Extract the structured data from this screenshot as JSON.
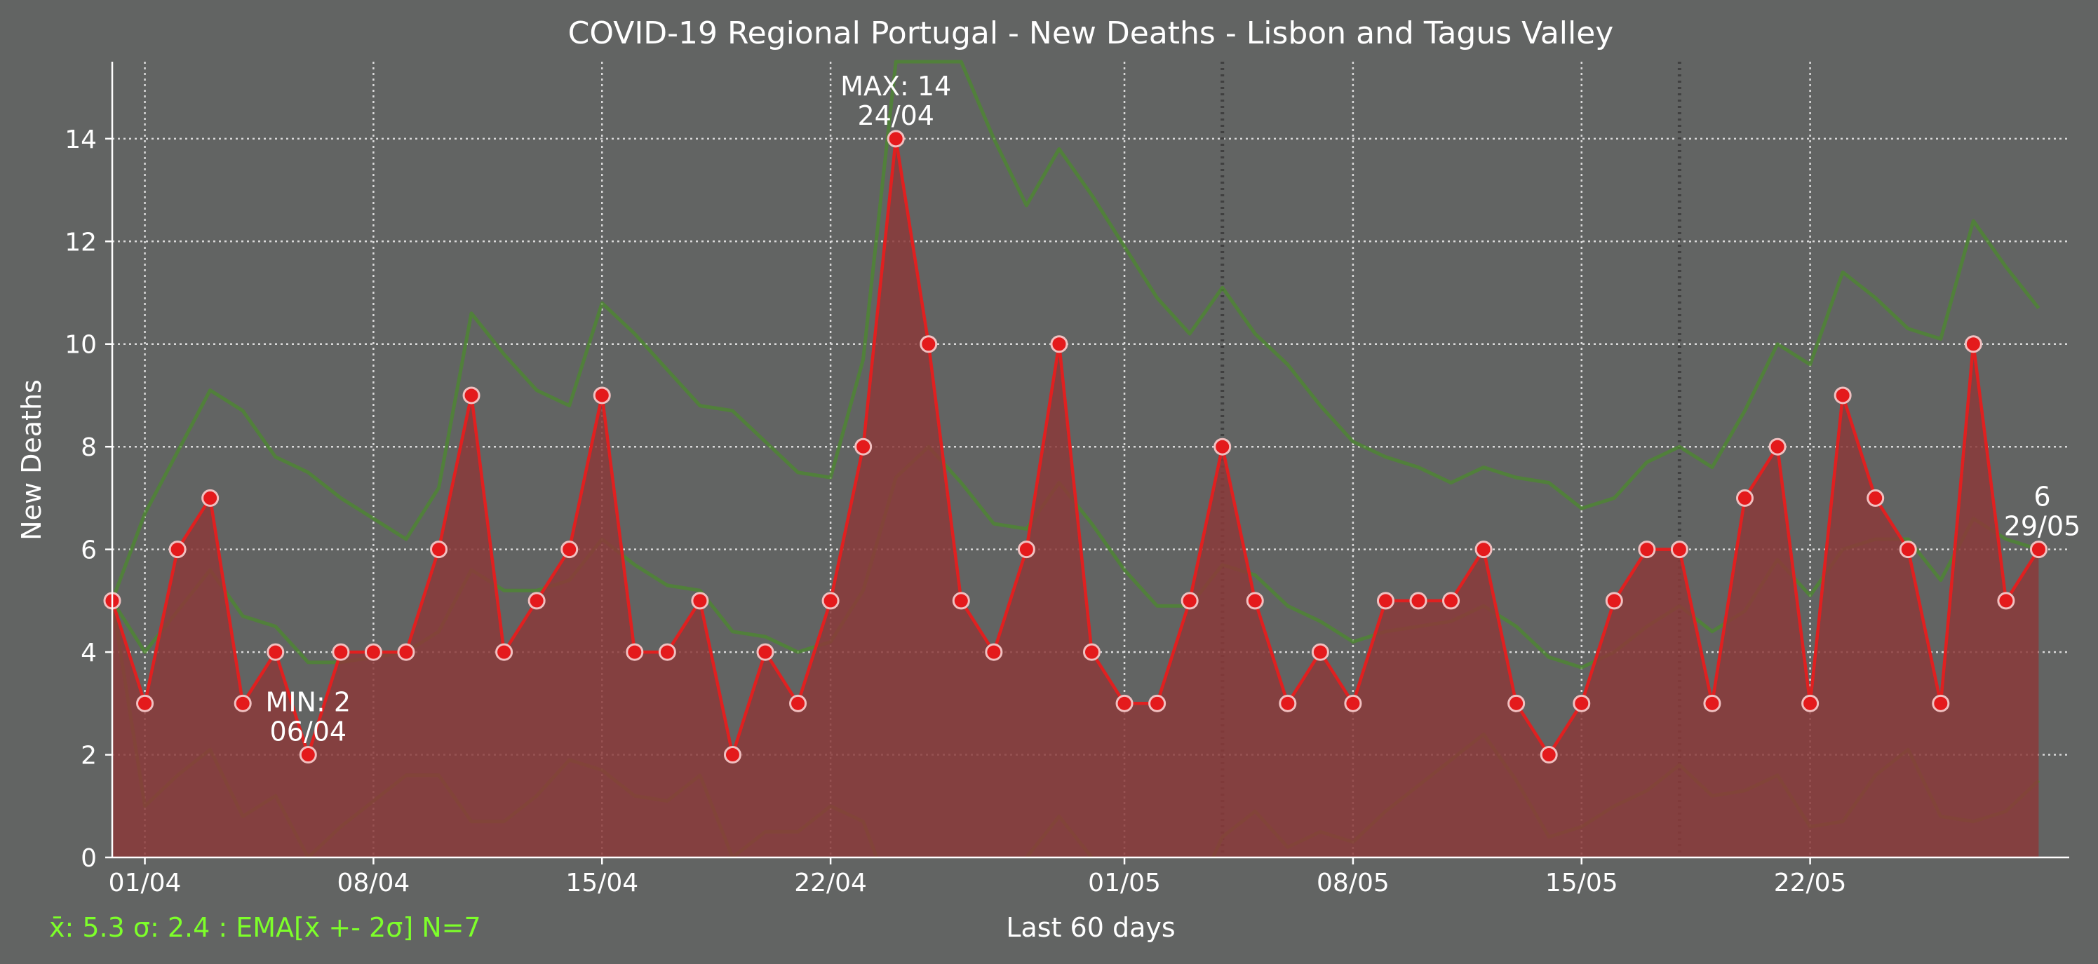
{
  "colors": {
    "background": "#626463",
    "series": "#e02020",
    "series_fill": "#8b3a3a",
    "marker": "#e41a1c",
    "marker_edge": "#f0c0c0",
    "band": "#4c8a2e",
    "footer": "#7dff2a",
    "text": "#ffffff",
    "grid": "#e6e6e6"
  },
  "footer_note": "x̄: 5.3 σ: 2.4 : EMA[x̄ +- 2σ] N=7",
  "chart_data": {
    "type": "line",
    "title": "COVID-19 Regional Portugal - New Deaths - Lisbon and Tagus Valley",
    "xlabel": "Last 60 days",
    "ylabel": "New Deaths",
    "ylim": [
      0,
      15.5
    ],
    "yticks": [
      0,
      2,
      4,
      6,
      8,
      10,
      12,
      14
    ],
    "xticks": [
      "01/04",
      "08/04",
      "15/04",
      "22/04",
      "01/05",
      "08/05",
      "15/05",
      "22/05"
    ],
    "grid": true,
    "dates": [
      "31/03",
      "01/04",
      "02/04",
      "03/04",
      "04/04",
      "05/04",
      "06/04",
      "07/04",
      "08/04",
      "09/04",
      "10/04",
      "11/04",
      "12/04",
      "13/04",
      "14/04",
      "15/04",
      "16/04",
      "17/04",
      "18/04",
      "19/04",
      "20/04",
      "21/04",
      "22/04",
      "23/04",
      "24/04",
      "25/04",
      "26/04",
      "27/04",
      "28/04",
      "29/04",
      "30/04",
      "01/05",
      "02/05",
      "03/05",
      "04/05",
      "05/05",
      "06/05",
      "07/05",
      "08/05",
      "09/05",
      "10/05",
      "11/05",
      "12/05",
      "13/05",
      "14/05",
      "15/05",
      "16/05",
      "17/05",
      "18/05",
      "19/05",
      "20/05",
      "21/05",
      "22/05",
      "23/05",
      "24/05",
      "25/05",
      "26/05",
      "27/05",
      "28/05",
      "29/05"
    ],
    "series": [
      {
        "values": [
          5,
          3,
          6,
          7,
          3,
          4,
          2,
          4,
          4,
          4,
          6,
          9,
          4,
          5,
          6,
          9,
          4,
          4,
          5,
          2,
          4,
          3,
          5,
          8,
          14,
          10,
          5,
          4,
          6,
          10,
          4,
          3,
          3,
          5,
          8,
          5,
          3,
          4,
          3,
          5,
          5,
          5,
          6,
          3,
          2,
          3,
          5,
          6,
          6,
          3,
          7,
          8,
          3,
          9,
          7,
          6,
          3,
          10,
          5,
          6
        ]
      },
      {
        "values": [
          5,
          6.7,
          7.9,
          9.1,
          8.7,
          7.8,
          7.5,
          7,
          6.6,
          6.2,
          7.2,
          10.6,
          9.8,
          9.1,
          8.8,
          10.8,
          10.2,
          9.5,
          8.8,
          8.7,
          8.1,
          7.5,
          7.4,
          9.7,
          15.5,
          15.5,
          15.5,
          14,
          12.7,
          13.8,
          12.9,
          11.9,
          10.9,
          10.2,
          11.1,
          10.2,
          9.6,
          8.8,
          8.1,
          7.8,
          7.6,
          7.3,
          7.6,
          7.4,
          7.3,
          6.8,
          7,
          7.7,
          8,
          7.6,
          8.7,
          10,
          9.6,
          11.4,
          10.9,
          10.3,
          10.1,
          12.4,
          11.5,
          10.7
        ]
      },
      {
        "values": [
          5,
          4,
          4.8,
          5.6,
          4.7,
          4.5,
          3.8,
          3.8,
          3.9,
          4,
          4.4,
          5.6,
          5.2,
          5.2,
          5.4,
          6.2,
          5.7,
          5.3,
          5.2,
          4.4,
          4.3,
          4,
          4.2,
          5.2,
          7.4,
          8,
          7.3,
          6.5,
          6.4,
          7.3,
          6.5,
          5.6,
          4.9,
          4.9,
          5.7,
          5.5,
          4.9,
          4.6,
          4.2,
          4.4,
          4.5,
          4.6,
          4.9,
          4.5,
          3.9,
          3.7,
          4,
          4.5,
          4.9,
          4.4,
          4.8,
          5.8,
          5.1,
          6,
          6.2,
          6.2,
          5.4,
          6.6,
          6.2,
          6
        ]
      },
      {
        "values": [
          5,
          1,
          1.6,
          2.1,
          0.8,
          1.2,
          0,
          0.6,
          1.1,
          1.6,
          1.6,
          0.7,
          0.7,
          1.2,
          1.9,
          1.7,
          1.2,
          1.1,
          1.6,
          0,
          0.5,
          0.5,
          1,
          0.7,
          -1,
          -1,
          -1,
          -1,
          0,
          0.8,
          0,
          -1,
          -1,
          -1,
          0.4,
          0.9,
          0.2,
          0.5,
          0.3,
          0.9,
          1.4,
          1.9,
          2.4,
          1.5,
          0.4,
          0.6,
          1,
          1.3,
          1.8,
          1.2,
          1.3,
          1.6,
          0.6,
          0.7,
          1.6,
          2.1,
          0.8,
          0.7,
          0.9,
          1.5
        ]
      }
    ],
    "annotations": [
      {
        "index": 6,
        "lines": [
          "MIN: 2",
          "06/04"
        ]
      },
      {
        "index": 24,
        "lines": [
          "MAX: 14",
          "24/04"
        ]
      },
      {
        "index": 59,
        "lines": [
          "6",
          "29/05"
        ]
      }
    ],
    "weekend_lines": [
      "04/05",
      "18/05"
    ]
  }
}
